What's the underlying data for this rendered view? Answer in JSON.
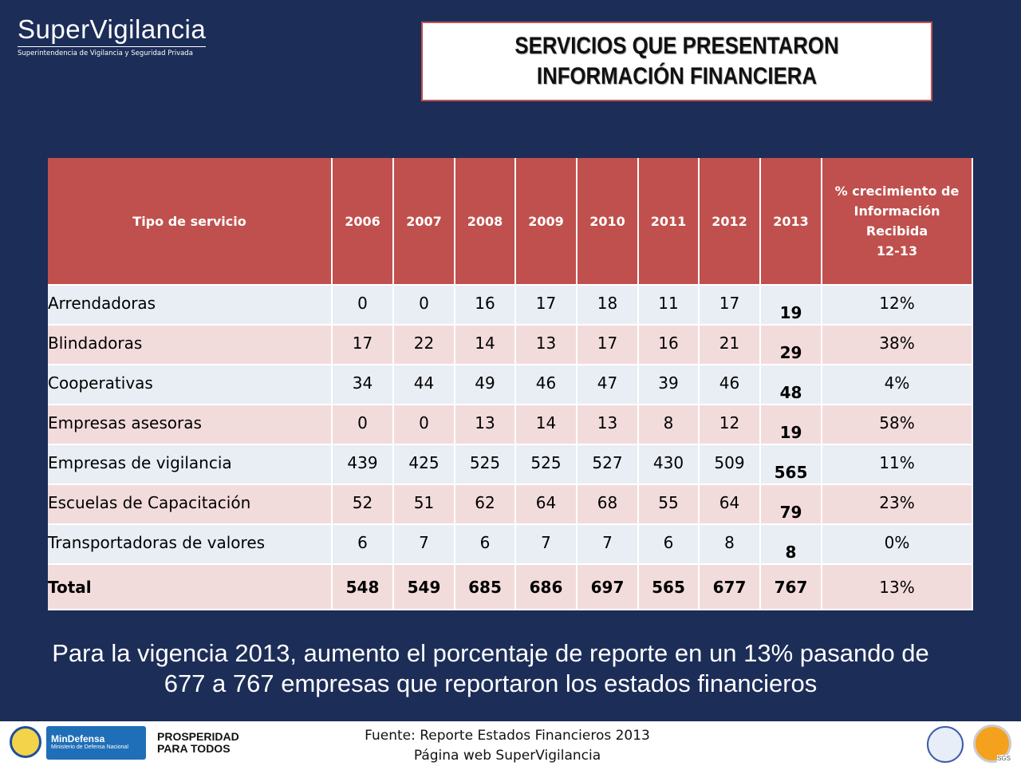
{
  "header": {
    "logo": "SuperVigilancia",
    "logo_subtitle": "Superintendencia de Vigilancia y Seguridad Privada",
    "title": [
      "SERVICIOS QUE PRESENTARON",
      "INFORMACIÓN FINANCIERA"
    ]
  },
  "table": {
    "columns": [
      "Tipo de servicio",
      "2006",
      "2007",
      "2008",
      "2009",
      "2010",
      "2011",
      "2012",
      "2013",
      [
        "% crecimiento  de",
        "Información Recibida",
        "12-13"
      ]
    ],
    "rows": [
      [
        "Arrendadoras",
        "0",
        "0",
        "16",
        "17",
        "18",
        "11",
        "17",
        "19",
        "12%"
      ],
      [
        "Blindadoras",
        "17",
        "22",
        "14",
        "13",
        "17",
        "16",
        "21",
        "29",
        "38%"
      ],
      [
        "Cooperativas",
        "34",
        "44",
        "49",
        "46",
        "47",
        "39",
        "46",
        "48",
        "4%"
      ],
      [
        "Empresas asesoras",
        "0",
        "0",
        "13",
        "14",
        "13",
        "8",
        "12",
        "19",
        "58%"
      ],
      [
        "Empresas de vigilancia",
        "439",
        "425",
        "525",
        "525",
        "527",
        "430",
        "509",
        "565",
        "11%"
      ],
      [
        "Escuelas de Capacitación",
        "52",
        "51",
        "62",
        "64",
        "68",
        "55",
        "64",
        "79",
        "23%"
      ],
      [
        "Transportadoras de valores",
        "6",
        "7",
        "6",
        "7",
        "7",
        "6",
        "8",
        "8",
        "0%"
      ],
      [
        "Total",
        "548",
        "549",
        "685",
        "686",
        "697",
        "565",
        "677",
        "767",
        "13%"
      ]
    ]
  },
  "summary": [
    "Para la vigencia 2013, aumento el porcentaje de reporte en un 13% pasando de",
    "677 a 767 empresas que reportaron los estados financieros"
  ],
  "footer": {
    "source": [
      "Fuente: Reporte Estados Financieros 2013",
      "Página web SuperVigilancia"
    ],
    "logos": {
      "mindefensa": "MinDefensa",
      "mindefensa_sub": "Ministerio de Defensa Nacional",
      "prosperidad": [
        "PROSPERIDAD",
        "PARA TODOS"
      ],
      "sgs": "SGS"
    }
  }
}
